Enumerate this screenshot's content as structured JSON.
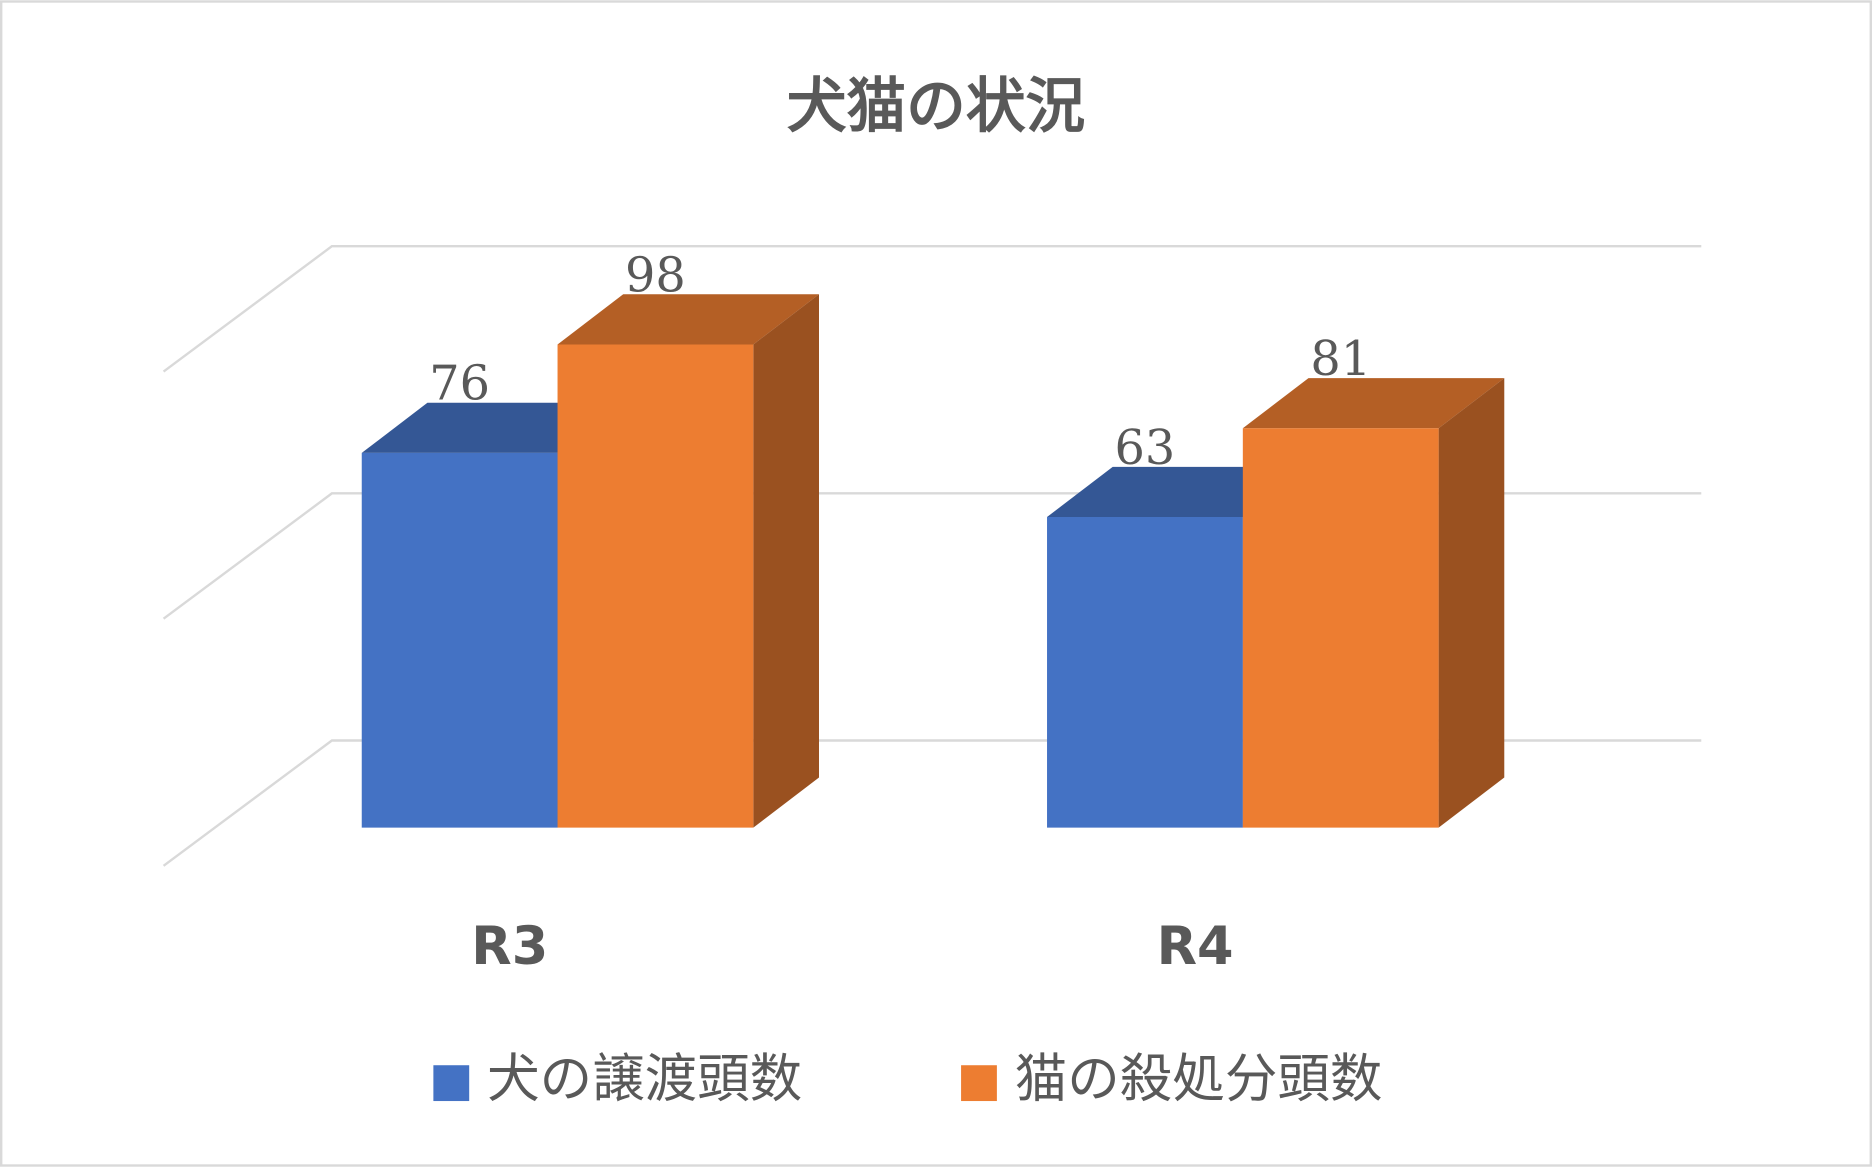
{
  "chart_data": {
    "type": "bar3d",
    "title": "犬猫の状況",
    "categories": [
      "R3",
      "R4"
    ],
    "series": [
      {
        "name": "犬の譲渡頭数",
        "color": "#4472c4",
        "values": [
          76,
          63
        ]
      },
      {
        "name": "猫の殺処分頭数",
        "color": "#ed7d31",
        "values": [
          98,
          81
        ]
      }
    ],
    "ylim": [
      0,
      100
    ],
    "yticks": [
      0,
      50,
      100
    ],
    "grid": true,
    "legend": "bottom"
  }
}
